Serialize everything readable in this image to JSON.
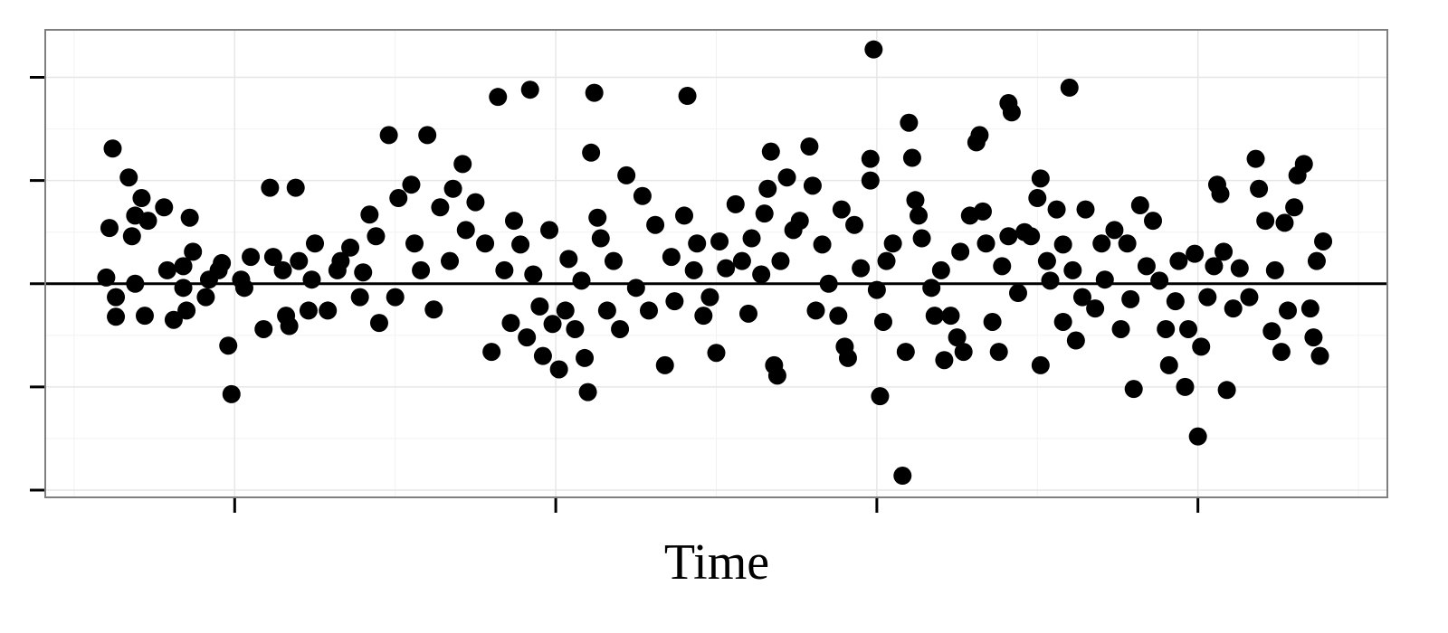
{
  "chart_data": {
    "type": "scatter",
    "xlabel": "Time",
    "color": "#000000",
    "grid": true,
    "hline": 0,
    "xlim": [
      0.41,
      4.59
    ],
    "xticks": [
      1,
      2,
      3,
      4
    ],
    "ylim": [
      -2.07,
      2.46
    ],
    "yticks": [
      -2,
      -1,
      0,
      1,
      2
    ],
    "x": [
      0.6,
      0.61,
      0.62,
      0.63,
      0.63,
      0.67,
      0.68,
      0.69,
      0.71,
      0.72,
      0.73,
      0.78,
      0.79,
      0.81,
      0.84,
      0.85,
      0.86,
      0.87,
      0.91,
      0.95,
      0.96,
      0.98,
      0.99,
      1.02,
      1.05,
      1.09,
      1.11,
      1.12,
      1.16,
      1.17,
      1.19,
      1.2,
      1.23,
      1.25,
      1.29,
      1.32,
      1.36,
      1.39,
      1.42,
      1.44,
      1.45,
      1.48,
      1.5,
      1.51,
      1.55,
      1.56,
      1.58,
      1.6,
      1.62,
      1.64,
      1.67,
      1.68,
      1.71,
      1.72,
      1.75,
      1.78,
      1.8,
      1.82,
      1.84,
      1.86,
      1.87,
      1.89,
      1.91,
      1.92,
      1.93,
      1.95,
      1.96,
      1.98,
      1.99,
      2.01,
      2.03,
      2.04,
      2.06,
      2.08,
      2.09,
      2.1,
      2.11,
      2.12,
      2.13,
      2.14,
      2.16,
      2.18,
      2.2,
      2.22,
      2.25,
      2.27,
      2.29,
      2.31,
      2.34,
      2.36,
      2.37,
      2.4,
      2.41,
      2.43,
      2.44,
      2.46,
      2.48,
      2.5,
      2.51,
      2.53,
      2.56,
      2.58,
      2.6,
      2.61,
      2.64,
      2.65,
      2.66,
      2.67,
      2.68,
      2.69,
      2.7,
      2.72,
      2.74,
      2.76,
      2.79,
      2.8,
      2.81,
      2.83,
      2.85,
      2.88,
      2.89,
      2.9,
      2.91,
      2.93,
      2.95,
      2.98,
      2.98,
      2.99,
      3.0,
      3.01,
      3.02,
      3.03,
      3.05,
      3.08,
      3.09,
      3.1,
      3.11,
      3.12,
      3.13,
      3.14,
      3.17,
      3.18,
      3.2,
      3.21,
      3.23,
      3.25,
      3.26,
      3.27,
      3.29,
      3.31,
      3.32,
      3.33,
      3.34,
      3.36,
      3.38,
      3.39,
      3.41,
      3.41,
      3.42,
      3.44,
      3.46,
      3.48,
      3.5,
      3.51,
      3.51,
      3.53,
      3.54,
      3.56,
      3.58,
      3.58,
      3.6,
      3.61,
      3.62,
      3.64,
      3.65,
      3.68,
      3.7,
      3.71,
      3.74,
      3.76,
      3.78,
      3.79,
      3.8,
      3.82,
      3.84,
      3.86,
      3.88,
      3.9,
      3.91,
      3.93,
      3.94,
      3.96,
      3.97,
      3.99,
      4.0,
      4.01,
      4.03,
      4.05,
      4.06,
      4.07,
      4.08,
      4.09,
      4.11,
      4.13,
      4.16,
      4.18,
      4.19,
      4.21,
      4.23,
      4.24,
      4.26,
      4.27,
      4.28,
      4.3,
      4.31,
      4.33,
      4.35,
      4.36,
      4.37,
      4.38,
      4.39,
      1.03,
      1.15,
      1.24,
      1.33,
      1.4,
      0.84,
      0.92,
      0.69
    ],
    "values": [
      0.06,
      0.54,
      1.31,
      -0.13,
      -0.32,
      1.03,
      0.46,
      0.66,
      0.83,
      -0.31,
      0.61,
      0.74,
      0.13,
      -0.35,
      -0.04,
      -0.26,
      0.64,
      0.31,
      -0.13,
      0.13,
      0.2,
      -0.6,
      -1.07,
      0.04,
      0.26,
      -0.44,
      0.93,
      0.26,
      -0.31,
      -0.41,
      0.93,
      0.22,
      -0.26,
      0.39,
      -0.26,
      0.13,
      0.35,
      -0.13,
      0.67,
      0.46,
      -0.38,
      1.44,
      -0.13,
      0.83,
      0.96,
      0.39,
      0.13,
      1.44,
      -0.25,
      0.74,
      0.22,
      0.92,
      1.16,
      0.52,
      0.79,
      0.39,
      -0.66,
      1.81,
      0.13,
      -0.38,
      0.61,
      0.38,
      -0.52,
      1.88,
      0.09,
      -0.22,
      -0.7,
      0.52,
      -0.39,
      -0.83,
      -0.26,
      0.24,
      -0.44,
      0.03,
      -0.72,
      -1.05,
      1.27,
      1.85,
      0.64,
      0.44,
      -0.26,
      0.22,
      -0.44,
      1.05,
      -0.04,
      0.85,
      -0.26,
      0.57,
      -0.79,
      0.26,
      -0.17,
      0.66,
      1.82,
      0.13,
      0.39,
      -0.31,
      -0.13,
      -0.67,
      0.41,
      0.15,
      0.77,
      0.22,
      -0.29,
      0.44,
      0.09,
      0.68,
      0.92,
      1.28,
      -0.79,
      -0.89,
      0.22,
      1.03,
      0.52,
      0.61,
      1.33,
      0.95,
      -0.26,
      0.38,
      0.0,
      -0.31,
      0.72,
      -0.61,
      -0.72,
      0.57,
      0.15,
      1.21,
      1.0,
      2.27,
      -0.06,
      -1.09,
      -0.37,
      0.22,
      0.39,
      -1.86,
      -0.66,
      1.56,
      1.22,
      0.81,
      0.66,
      0.44,
      -0.04,
      -0.31,
      0.13,
      -0.74,
      -0.31,
      -0.52,
      0.31,
      -0.66,
      0.66,
      1.37,
      1.44,
      0.7,
      0.39,
      -0.37,
      -0.66,
      0.17,
      0.46,
      1.75,
      1.66,
      -0.09,
      0.5,
      0.46,
      0.83,
      -0.79,
      1.02,
      0.22,
      0.03,
      0.72,
      0.38,
      -0.37,
      1.9,
      0.13,
      -0.55,
      -0.13,
      0.72,
      -0.24,
      0.39,
      0.04,
      0.52,
      -0.44,
      0.39,
      -0.15,
      -1.02,
      0.76,
      0.17,
      0.61,
      0.03,
      -0.44,
      -0.79,
      -0.17,
      0.22,
      -1.0,
      -0.44,
      0.29,
      -1.48,
      -0.61,
      -0.13,
      0.17,
      0.96,
      0.87,
      0.31,
      -1.03,
      -0.24,
      0.15,
      -0.13,
      1.21,
      0.92,
      0.61,
      -0.46,
      0.13,
      -0.66,
      0.59,
      -0.26,
      0.74,
      1.05,
      1.16,
      -0.24,
      -0.52,
      0.22,
      -0.7,
      0.41,
      -0.04,
      0.13,
      0.04,
      0.22,
      0.11,
      0.17,
      0.04,
      0.0
    ]
  }
}
